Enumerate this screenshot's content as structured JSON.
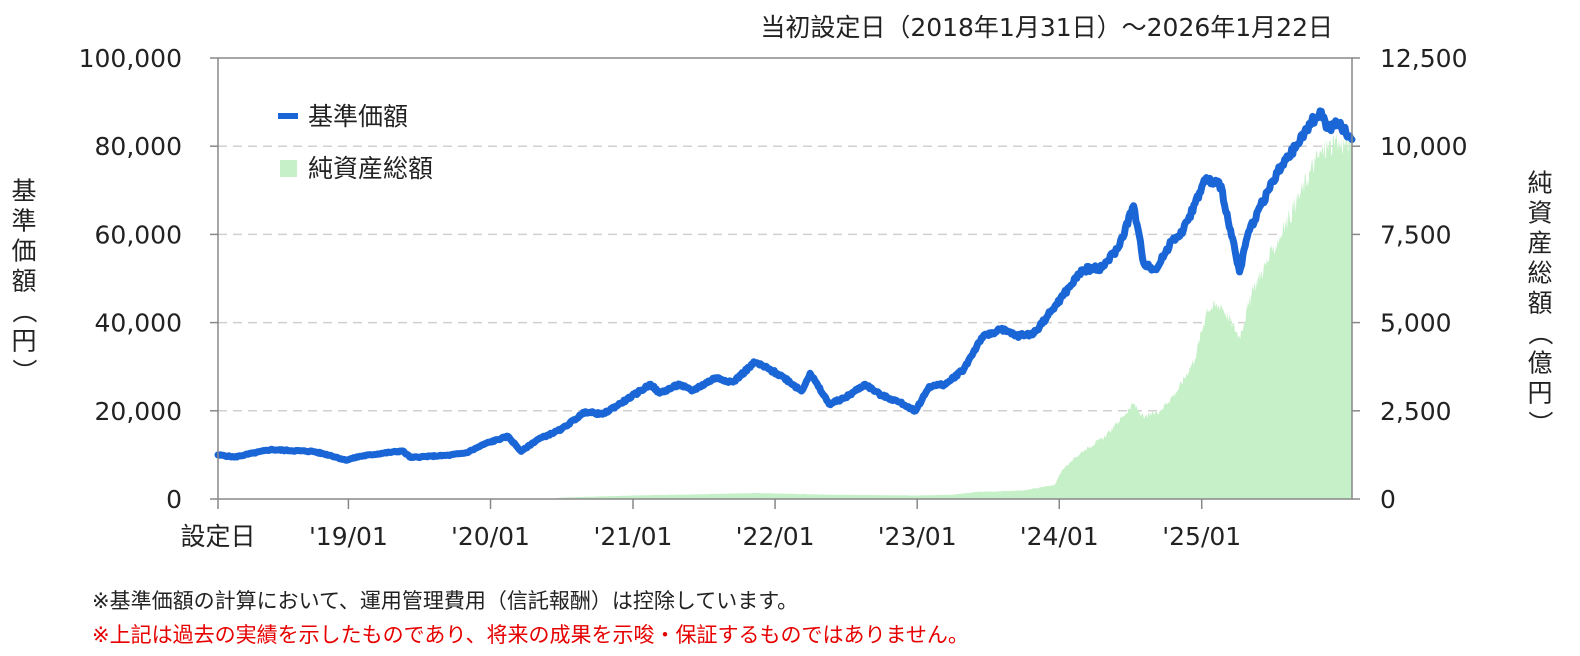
{
  "period_label": "当初設定日（2018年1月31日）～2026年1月22日",
  "notes": [
    "※基準価額の計算において、運用管理費用（信託報酬）は控除しています。",
    "※上記は過去の実績を示したものであり、将来の成果を示唆・保証するものではありません。"
  ],
  "colors": {
    "nav_line": "#1a66d6",
    "aum_area": "#c5f0c8",
    "grid": "#d0d0d0",
    "axis": "#888888",
    "note_red": "#e60000"
  },
  "chart_data": {
    "type": "line",
    "title": "",
    "x_axis": {
      "type": "date",
      "range": [
        "2018-01-31",
        "2026-01-22"
      ],
      "ticks": [
        {
          "date": "2018-01-31",
          "label": "設定日"
        },
        {
          "date": "2019-01-01",
          "label": "'19/01"
        },
        {
          "date": "2020-01-01",
          "label": "'20/01"
        },
        {
          "date": "2021-01-01",
          "label": "'21/01"
        },
        {
          "date": "2022-01-01",
          "label": "'22/01"
        },
        {
          "date": "2023-01-01",
          "label": "'23/01"
        },
        {
          "date": "2024-01-01",
          "label": "'24/01"
        },
        {
          "date": "2025-01-01",
          "label": "'25/01"
        }
      ]
    },
    "y_left": {
      "label": "基準価額（円）",
      "range": [
        0,
        100000
      ],
      "ticks": [
        0,
        20000,
        40000,
        60000,
        80000,
        100000
      ],
      "tick_labels": [
        "0",
        "20,000",
        "40,000",
        "60,000",
        "80,000",
        "100,000"
      ]
    },
    "y_right": {
      "label": "純資産総額（億円）",
      "range": [
        0,
        12500
      ],
      "ticks": [
        0,
        2500,
        5000,
        7500,
        10000,
        12500
      ],
      "tick_labels": [
        "0",
        "2,500",
        "5,000",
        "7,500",
        "10,000",
        "12,500"
      ]
    },
    "grid": "horizontal-dashed",
    "legend": {
      "position": "top-left",
      "entries": [
        {
          "name": "基準価額",
          "type": "line",
          "color": "#1a66d6"
        },
        {
          "name": "純資産総額",
          "type": "area",
          "color": "#c5f0c8"
        }
      ]
    },
    "series": [
      {
        "name": "基準価額",
        "axis": "left",
        "type": "line",
        "points": [
          [
            "2018-01-31",
            10000
          ],
          [
            "2018-03-15",
            9500
          ],
          [
            "2018-05-01",
            10400
          ],
          [
            "2018-06-15",
            11200
          ],
          [
            "2018-08-01",
            11000
          ],
          [
            "2018-10-01",
            10800
          ],
          [
            "2018-11-15",
            9900
          ],
          [
            "2018-12-25",
            8800
          ],
          [
            "2019-02-01",
            9700
          ],
          [
            "2019-04-01",
            10400
          ],
          [
            "2019-05-20",
            10900
          ],
          [
            "2019-06-10",
            9400
          ],
          [
            "2019-08-01",
            9700
          ],
          [
            "2019-09-15",
            9900
          ],
          [
            "2019-11-01",
            10500
          ],
          [
            "2019-12-20",
            12600
          ],
          [
            "2020-02-15",
            14200
          ],
          [
            "2020-03-20",
            10800
          ],
          [
            "2020-05-01",
            13500
          ],
          [
            "2020-07-01",
            15800
          ],
          [
            "2020-09-01",
            19800
          ],
          [
            "2020-10-15",
            19200
          ],
          [
            "2020-12-15",
            22500
          ],
          [
            "2021-02-15",
            26000
          ],
          [
            "2021-03-10",
            24000
          ],
          [
            "2021-05-01",
            26000
          ],
          [
            "2021-06-01",
            24500
          ],
          [
            "2021-08-01",
            27500
          ],
          [
            "2021-09-15",
            26500
          ],
          [
            "2021-11-10",
            31000
          ],
          [
            "2021-12-15",
            29500
          ],
          [
            "2022-01-25",
            27500
          ],
          [
            "2022-03-10",
            24500
          ],
          [
            "2022-04-01",
            28500
          ],
          [
            "2022-05-20",
            21500
          ],
          [
            "2022-07-01",
            23000
          ],
          [
            "2022-08-20",
            26000
          ],
          [
            "2022-10-01",
            23500
          ],
          [
            "2022-11-15",
            22000
          ],
          [
            "2022-12-28",
            20000
          ],
          [
            "2023-02-01",
            25500
          ],
          [
            "2023-03-15",
            26000
          ],
          [
            "2023-05-01",
            29500
          ],
          [
            "2023-06-15",
            36500
          ],
          [
            "2023-08-01",
            38500
          ],
          [
            "2023-09-15",
            37000
          ],
          [
            "2023-10-27",
            37500
          ],
          [
            "2023-12-15",
            43000
          ],
          [
            "2024-01-31",
            48500
          ],
          [
            "2024-03-01",
            52000
          ],
          [
            "2024-04-20",
            52500
          ],
          [
            "2024-06-01",
            57000
          ],
          [
            "2024-07-10",
            66500
          ],
          [
            "2024-08-05",
            53500
          ],
          [
            "2024-09-06",
            52000
          ],
          [
            "2024-10-15",
            58500
          ],
          [
            "2024-11-15",
            61000
          ],
          [
            "2024-12-15",
            67000
          ],
          [
            "2025-01-10",
            72500
          ],
          [
            "2025-02-20",
            71000
          ],
          [
            "2025-03-10",
            63000
          ],
          [
            "2025-04-08",
            51500
          ],
          [
            "2025-05-01",
            60500
          ],
          [
            "2025-06-01",
            66500
          ],
          [
            "2025-07-15",
            74000
          ],
          [
            "2025-09-01",
            80000
          ],
          [
            "2025-10-10",
            85500
          ],
          [
            "2025-11-01",
            88000
          ],
          [
            "2025-11-20",
            84000
          ],
          [
            "2025-12-20",
            85000
          ],
          [
            "2026-01-22",
            81500
          ]
        ]
      },
      {
        "name": "純資産総額",
        "axis": "right",
        "type": "area",
        "points": [
          [
            "2018-01-31",
            0
          ],
          [
            "2020-06-01",
            0
          ],
          [
            "2020-07-01",
            40
          ],
          [
            "2021-01-01",
            100
          ],
          [
            "2021-06-01",
            130
          ],
          [
            "2021-11-15",
            170
          ],
          [
            "2022-06-01",
            120
          ],
          [
            "2022-12-28",
            100
          ],
          [
            "2023-04-01",
            120
          ],
          [
            "2023-06-01",
            200
          ],
          [
            "2023-10-01",
            240
          ],
          [
            "2023-12-20",
            400
          ],
          [
            "2024-01-10",
            850
          ],
          [
            "2024-03-01",
            1350
          ],
          [
            "2024-05-01",
            1800
          ],
          [
            "2024-07-10",
            2700
          ],
          [
            "2024-08-05",
            2300
          ],
          [
            "2024-09-15",
            2500
          ],
          [
            "2024-11-01",
            3100
          ],
          [
            "2024-12-15",
            4000
          ],
          [
            "2025-01-15",
            5400
          ],
          [
            "2025-02-20",
            5500
          ],
          [
            "2025-04-08",
            4600
          ],
          [
            "2025-05-15",
            6000
          ],
          [
            "2025-07-01",
            7000
          ],
          [
            "2025-09-01",
            8400
          ],
          [
            "2025-10-20",
            9600
          ],
          [
            "2025-11-20",
            10000
          ],
          [
            "2026-01-22",
            10100
          ]
        ]
      }
    ]
  }
}
